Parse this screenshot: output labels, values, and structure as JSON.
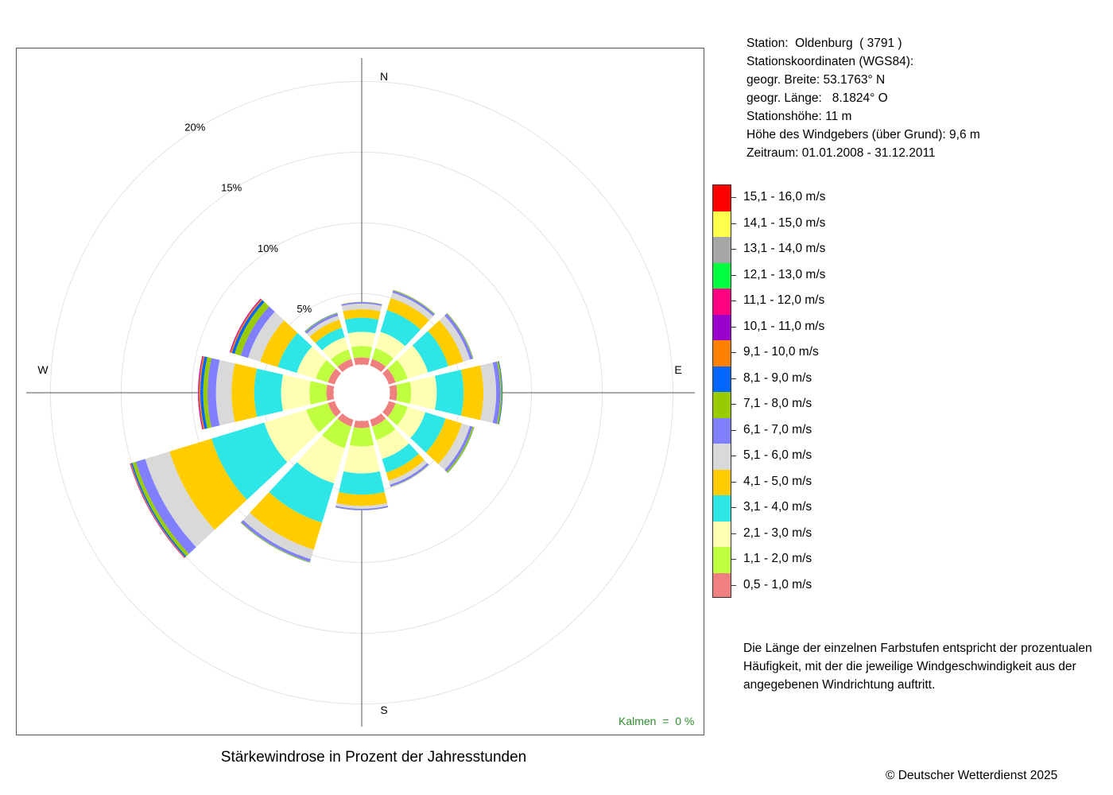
{
  "station_info": [
    "Station:  Oldenburg  ( 3791 )",
    "Stationskoordinaten (WGS84):",
    "geogr. Breite: 53.1763° N",
    "geogr. Länge:   8.1824° O",
    "Stationshöhe: 11 m",
    "Höhe des Windgebers (über Grund): 9,6 m",
    "Zeitraum: 01.01.2008 - 31.12.2011"
  ],
  "note": "Die Länge der einzelnen Farbstufen entspricht der prozentualen Häufigkeit, mit der die jeweilige Windgeschwindigkeit aus der angegebenen Windrichtung auftritt.",
  "calm_label": "Kalmen  =  0 %",
  "footer": {
    "copyright": "© Deutscher Wetterdienst  2025"
  },
  "chart_data": {
    "type": "windrose",
    "title": "Stärkewindrose in Prozent der Jahresstunden",
    "compass_labels": {
      "north": "N",
      "east": "E",
      "south": "S",
      "west": "W"
    },
    "ring_labels": [
      "5%",
      "10%",
      "15%",
      "20%"
    ],
    "rings": [
      5,
      10,
      15,
      20
    ],
    "hole_radius_percent": 1,
    "speed_classes": [
      {
        "label": "0,5 - 1,0 m/s",
        "color": "#F08080"
      },
      {
        "label": "1,1 - 2,0 m/s",
        "color": "#BFFF3F"
      },
      {
        "label": "2,1 - 3,0 m/s",
        "color": "#FFFFB3"
      },
      {
        "label": "3,1 - 4,0 m/s",
        "color": "#2EE6E6"
      },
      {
        "label": "4,1 - 5,0 m/s",
        "color": "#FFCC00"
      },
      {
        "label": "5,1 - 6,0 m/s",
        "color": "#D9D9D9"
      },
      {
        "label": "6,1 - 7,0 m/s",
        "color": "#8080FF"
      },
      {
        "label": "7,1 - 8,0 m/s",
        "color": "#99CC00"
      },
      {
        "label": "8,1 - 9,0 m/s",
        "color": "#0066FF"
      },
      {
        "label": "9,1 - 10,0 m/s",
        "color": "#FF8000"
      },
      {
        "label": "10,1 - 11,0 m/s",
        "color": "#9900CC"
      },
      {
        "label": "11,1 - 12,0 m/s",
        "color": "#FF0080"
      },
      {
        "label": "12,1 - 13,0 m/s",
        "color": "#00FF40"
      },
      {
        "label": "13,1 - 14,0 m/s",
        "color": "#A6A6A6"
      },
      {
        "label": "14,1 - 15,0 m/s",
        "color": "#FFFF4D"
      },
      {
        "label": "15,1 - 16,0 m/s",
        "color": "#FF0000"
      }
    ],
    "directions": [
      {
        "dir_deg": 0,
        "values": [
          0.5,
          0.8,
          1.0,
          1.0,
          0.6,
          0.4,
          0.1,
          0.02,
          0,
          0,
          0,
          0,
          0,
          0,
          0,
          0
        ]
      },
      {
        "dir_deg": 30,
        "values": [
          0.5,
          0.8,
          1.2,
          1.6,
          0.9,
          0.4,
          0.15,
          0.05,
          0.01,
          0,
          0,
          0,
          0,
          0,
          0,
          0
        ]
      },
      {
        "dir_deg": 60,
        "values": [
          0.5,
          0.9,
          1.5,
          1.5,
          1.1,
          0.5,
          0.2,
          0.05,
          0.01,
          0,
          0,
          0,
          0,
          0,
          0,
          0
        ]
      },
      {
        "dir_deg": 90,
        "values": [
          0.5,
          1.0,
          1.8,
          1.9,
          1.4,
          0.9,
          0.3,
          0.1,
          0.05,
          0.01,
          0,
          0,
          0,
          0,
          0,
          0
        ]
      },
      {
        "dir_deg": 120,
        "values": [
          0.5,
          0.9,
          1.3,
          1.5,
          1.2,
          0.6,
          0.2,
          0.1,
          0.02,
          0,
          0,
          0,
          0,
          0,
          0,
          0
        ]
      },
      {
        "dir_deg": 150,
        "values": [
          0.5,
          1.0,
          1.4,
          1.0,
          0.6,
          0.3,
          0.15,
          0.02,
          0,
          0,
          0,
          0,
          0,
          0,
          0,
          0
        ]
      },
      {
        "dir_deg": 180,
        "values": [
          0.5,
          1.3,
          1.9,
          1.5,
          0.8,
          0.2,
          0.1,
          0.02,
          0,
          0,
          0,
          0,
          0,
          0,
          0,
          0
        ]
      },
      {
        "dir_deg": 210,
        "values": [
          0.5,
          1.6,
          2.6,
          2.9,
          2.0,
          0.7,
          0.2,
          0.05,
          0.01,
          0,
          0,
          0,
          0,
          0,
          0,
          0
        ]
      },
      {
        "dir_deg": 240,
        "values": [
          0.5,
          1.6,
          3.1,
          3.9,
          3.1,
          1.8,
          0.7,
          0.25,
          0.1,
          0.05,
          0.03,
          0.01,
          0,
          0,
          0,
          0
        ]
      },
      {
        "dir_deg": 270,
        "values": [
          0.5,
          1.2,
          2.0,
          1.9,
          1.6,
          1.1,
          0.6,
          0.3,
          0.2,
          0.1,
          0.05,
          0.02,
          0,
          0,
          0,
          0
        ]
      },
      {
        "dir_deg": 300,
        "values": [
          0.5,
          0.9,
          1.4,
          1.4,
          1.3,
          0.9,
          0.55,
          0.45,
          0.2,
          0.1,
          0.05,
          0.02,
          0,
          0,
          0,
          0
        ]
      },
      {
        "dir_deg": 330,
        "values": [
          0.5,
          0.7,
          0.9,
          0.7,
          0.6,
          0.3,
          0.15,
          0.05,
          0.02,
          0,
          0,
          0,
          0,
          0,
          0,
          0
        ]
      }
    ]
  }
}
